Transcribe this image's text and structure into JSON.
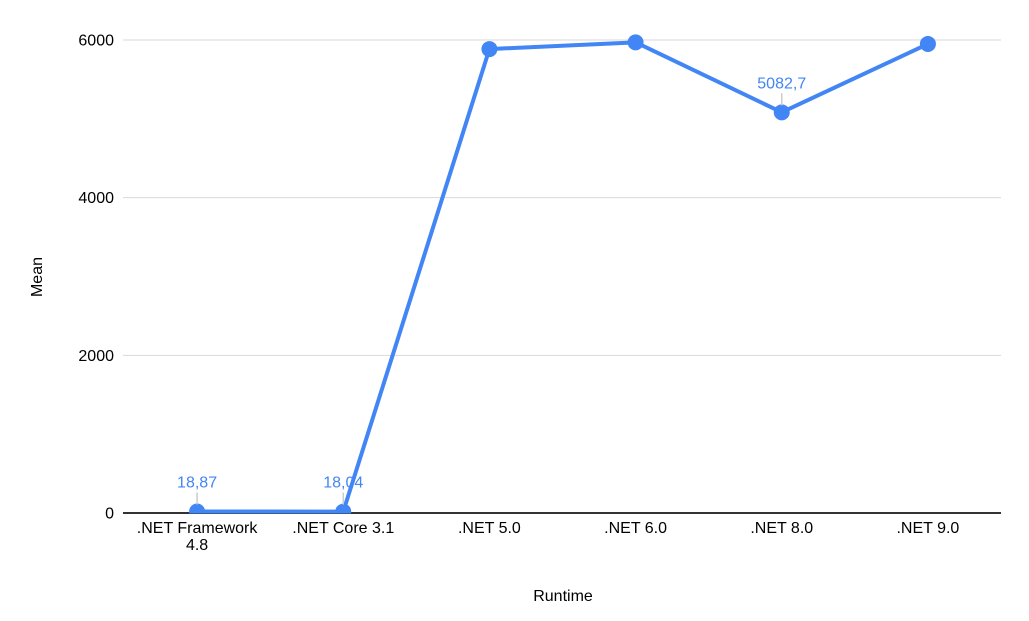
{
  "chart_data": {
    "type": "line",
    "title": "",
    "xlabel": "Runtime",
    "ylabel": "Mean",
    "categories": [
      ".NET Framework 4.8",
      ".NET Core 3.1",
      ".NET 5.0",
      ".NET 6.0",
      ".NET 8.0",
      ".NET 9.0"
    ],
    "series": [
      {
        "name": "Mean",
        "values": [
          18.87,
          18.04,
          5885,
          5970,
          5082.7,
          5950
        ],
        "point_labels": [
          "18,87",
          "18,04",
          null,
          null,
          "5082,7",
          null
        ]
      }
    ],
    "ylim": [
      0,
      6000
    ],
    "yticks": [
      0,
      2000,
      4000,
      6000
    ],
    "ytick_labels": [
      "0",
      "2000",
      "4000",
      "6000"
    ],
    "grid": true,
    "legend": "none",
    "colors": {
      "series": "#4285f4",
      "point_label": "#4285f4",
      "grid": "#d9d9d9",
      "axis": "#333333",
      "leader": "#cccccc",
      "text": "#000000",
      "background": "#ffffff"
    }
  }
}
